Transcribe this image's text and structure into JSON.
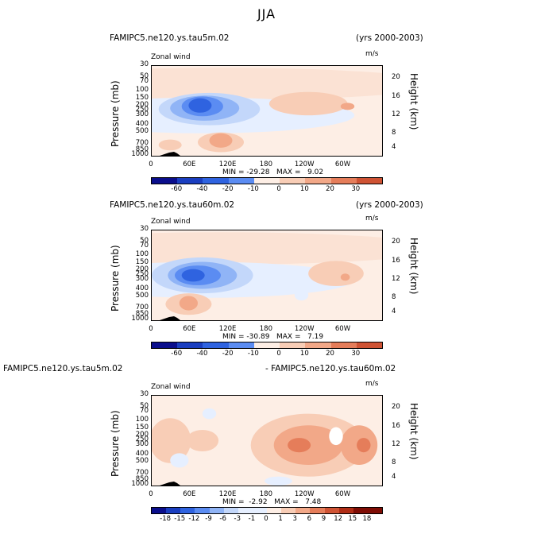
{
  "page_title": "JJA",
  "colors": {
    "blues": [
      "#0a0e8c",
      "#1a3ec0",
      "#2f63e0",
      "#5b8cf2",
      "#90b4f6",
      "#c3d7fa",
      "#e6efff"
    ],
    "reds": [
      "#fdeee5",
      "#f8cdb6",
      "#f2a888",
      "#e57d5a",
      "#cf5334",
      "#b02d16",
      "#7f0d05"
    ],
    "neutral": "#fdeee5"
  },
  "chart_data": [
    {
      "type": "heatmap",
      "left_title": "FAMIPC5.ne120.ys.tau5m.02",
      "right_title": "(yrs 2000-2003)",
      "subtitle": "Zonal wind",
      "units": "m/s",
      "ylabel": "Pressure (mb)",
      "ylabel_right": "Height (km)",
      "y_ticks": [
        "30",
        "50",
        "70",
        "100",
        "150",
        "200",
        "250",
        "300",
        "400",
        "500",
        "700",
        "850",
        "1000"
      ],
      "y2_ticks": [
        "20",
        "16",
        "12",
        "8",
        "4"
      ],
      "x_ticks": [
        "0",
        "60E",
        "120E",
        "180",
        "120W",
        "60W"
      ],
      "stats": "MIN = -29.28   MAX =   9.02",
      "min": -29.28,
      "max": 9.02,
      "colorbar_labels": [
        "-60",
        "-40",
        "-20",
        "-10",
        "0",
        "10",
        "20",
        "30"
      ]
    },
    {
      "type": "heatmap",
      "left_title": "FAMIPC5.ne120.ys.tau60m.02",
      "right_title": "(yrs 2000-2003)",
      "subtitle": "Zonal wind",
      "units": "m/s",
      "ylabel": "Pressure (mb)",
      "ylabel_right": "Height (km)",
      "y_ticks": [
        "30",
        "50",
        "70",
        "100",
        "150",
        "200",
        "250",
        "300",
        "400",
        "500",
        "700",
        "850",
        "1000"
      ],
      "y2_ticks": [
        "20",
        "16",
        "12",
        "8",
        "4"
      ],
      "x_ticks": [
        "0",
        "60E",
        "120E",
        "180",
        "120W",
        "60W"
      ],
      "stats": "MIN = -30.89   MAX =   7.19",
      "min": -30.89,
      "max": 7.19,
      "colorbar_labels": [
        "-60",
        "-40",
        "-20",
        "-10",
        "0",
        "10",
        "20",
        "30"
      ]
    },
    {
      "type": "heatmap",
      "left_title": "FAMIPC5.ne120.ys.tau5m.02",
      "right_title": "- FAMIPC5.ne120.ys.tau60m.02",
      "subtitle": "Zonal wind",
      "units": "m/s",
      "ylabel": "Pressure (mb)",
      "ylabel_right": "Height (km)",
      "y_ticks": [
        "30",
        "50",
        "70",
        "100",
        "150",
        "200",
        "250",
        "300",
        "400",
        "500",
        "700",
        "850",
        "1000"
      ],
      "y2_ticks": [
        "20",
        "16",
        "12",
        "8",
        "4"
      ],
      "x_ticks": [
        "0",
        "60E",
        "120E",
        "180",
        "120W",
        "60W"
      ],
      "stats": "MIN =  -2.92   MAX =   7.48",
      "min": -2.92,
      "max": 7.48,
      "colorbar_labels": [
        "-18",
        "-15",
        "-12",
        "-9",
        "-6",
        "-3",
        "-1",
        "0",
        "1",
        "3",
        "6",
        "9",
        "12",
        "15",
        "18"
      ]
    }
  ]
}
